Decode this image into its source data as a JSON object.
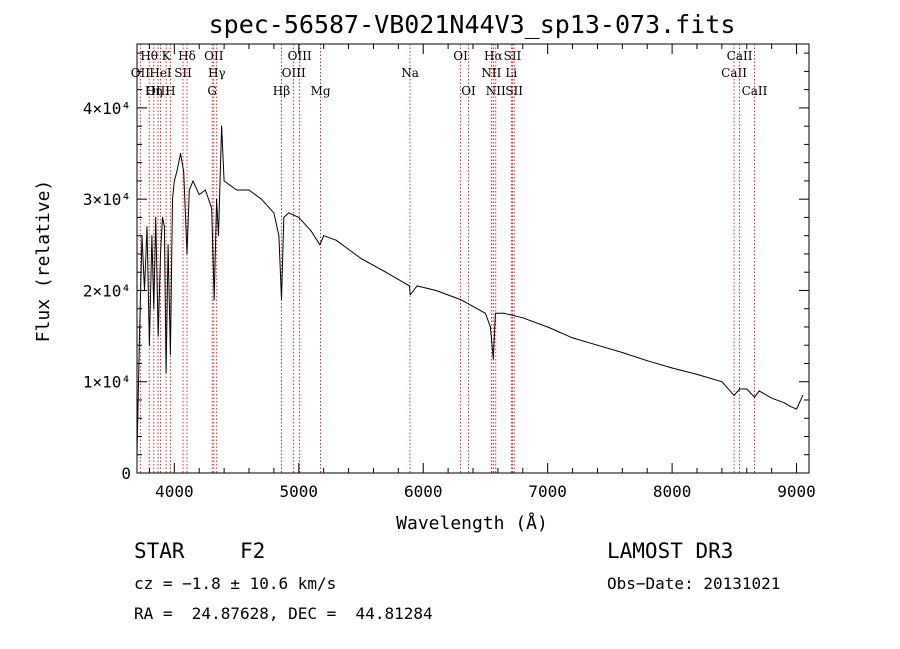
{
  "chart_data": {
    "type": "line",
    "title": "spec-56587-VB021N44V3_sp13-073.fits",
    "xlabel": "Wavelength (Å)",
    "ylabel": "Flux (relative)",
    "xlim": [
      3700,
      9100
    ],
    "ylim": [
      0,
      47000
    ],
    "xticks": [
      4000,
      5000,
      6000,
      7000,
      8000,
      9000
    ],
    "yticks": [
      {
        "value": 0,
        "label": "0"
      },
      {
        "value": 10000,
        "label": "1×10⁴"
      },
      {
        "value": 20000,
        "label": "2×10⁴"
      },
      {
        "value": 30000,
        "label": "3×10⁴"
      },
      {
        "value": 40000,
        "label": "4×10⁴"
      }
    ],
    "spectrum": {
      "name": "flux",
      "x": [
        3700,
        3720,
        3740,
        3760,
        3780,
        3800,
        3820,
        3835,
        3850,
        3870,
        3889,
        3905,
        3920,
        3934,
        3950,
        3968,
        3985,
        4000,
        4020,
        4050,
        4075,
        4102,
        4120,
        4150,
        4200,
        4250,
        4300,
        4320,
        4340,
        4355,
        4380,
        4400,
        4450,
        4500,
        4600,
        4700,
        4800,
        4840,
        4861,
        4880,
        4920,
        5000,
        5100,
        5170,
        5200,
        5300,
        5400,
        5500,
        5700,
        5890,
        5895,
        5950,
        6100,
        6300,
        6500,
        6540,
        6563,
        6580,
        6650,
        6800,
        7000,
        7200,
        7400,
        7600,
        7800,
        8000,
        8200,
        8400,
        8498,
        8542,
        8600,
        8662,
        8700,
        8800,
        8900,
        8950,
        9000,
        9050
      ],
      "y": [
        2000,
        15000,
        26000,
        20000,
        27000,
        14000,
        26000,
        18000,
        28000,
        15000,
        24000,
        28000,
        27000,
        11000,
        25000,
        13000,
        30000,
        32000,
        33000,
        35000,
        33000,
        24000,
        31000,
        32000,
        30500,
        31000,
        29000,
        19000,
        30000,
        26000,
        38000,
        32000,
        31500,
        31000,
        31000,
        30000,
        28500,
        26000,
        19000,
        28000,
        28500,
        28000,
        26500,
        25000,
        26000,
        25500,
        24500,
        23500,
        22000,
        20500,
        19500,
        20500,
        20000,
        19000,
        17500,
        16000,
        12500,
        17500,
        17500,
        17000,
        16000,
        14800,
        14000,
        13200,
        12300,
        11500,
        10800,
        10000,
        8500,
        9200,
        9200,
        8300,
        9000,
        8200,
        7700,
        7300,
        7000,
        8500
      ]
    },
    "lines": [
      {
        "label": "Hθ",
        "wl": 3798,
        "row": 0
      },
      {
        "label": "OII",
        "wl": 3727,
        "row": 1
      },
      {
        "label": "OIII",
        "wl": 3869,
        "row": 2
      },
      {
        "label": "Hη",
        "wl": 3835,
        "row": 2
      },
      {
        "label": "HeI",
        "wl": 3889,
        "row": 1
      },
      {
        "label": "K",
        "wl": 3934,
        "row": 0
      },
      {
        "label": "SII",
        "wl": 4070,
        "row": 1
      },
      {
        "label": "H",
        "wl": 3968,
        "row": 2
      },
      {
        "label": "Hδ",
        "wl": 4102,
        "row": 0
      },
      {
        "label": "G",
        "wl": 4304,
        "row": 2
      },
      {
        "label": "OII",
        "wl": 4317,
        "row": 0
      },
      {
        "label": "Hγ",
        "wl": 4341,
        "row": 1
      },
      {
        "label": "Hβ",
        "wl": 4861,
        "row": 2
      },
      {
        "label": "OIII",
        "wl": 4959,
        "row": 1
      },
      {
        "label": "OIII",
        "wl": 5007,
        "row": 0
      },
      {
        "label": "Mg",
        "wl": 5175,
        "row": 2
      },
      {
        "label": "Na",
        "wl": 5894,
        "row": 1
      },
      {
        "label": "OI",
        "wl": 6300,
        "row": 0
      },
      {
        "label": "OI",
        "wl": 6364,
        "row": 2
      },
      {
        "label": "NII",
        "wl": 6548,
        "row": 1
      },
      {
        "label": "Hα",
        "wl": 6563,
        "row": 0
      },
      {
        "label": "NII",
        "wl": 6583,
        "row": 2
      },
      {
        "label": "SII",
        "wl": 6717,
        "row": 0
      },
      {
        "label": "SII",
        "wl": 6731,
        "row": 2
      },
      {
        "label": "Li",
        "wl": 6708,
        "row": 1
      },
      {
        "label": "CaII",
        "wl": 8498,
        "row": 1
      },
      {
        "label": "CaII",
        "wl": 8542,
        "row": 0
      },
      {
        "label": "CaII",
        "wl": 8662,
        "row": 2
      }
    ],
    "line_color": "#c00000",
    "legend": "none"
  },
  "info": {
    "object_class": "STAR",
    "subclass": "F2",
    "survey": "LAMOST DR3",
    "velocity": "cz = −1.8 ± 10.6 km/s",
    "obs_date": "Obs−Date: 20131021",
    "coords": "RA =  24.87628, DEC =  44.81284"
  }
}
